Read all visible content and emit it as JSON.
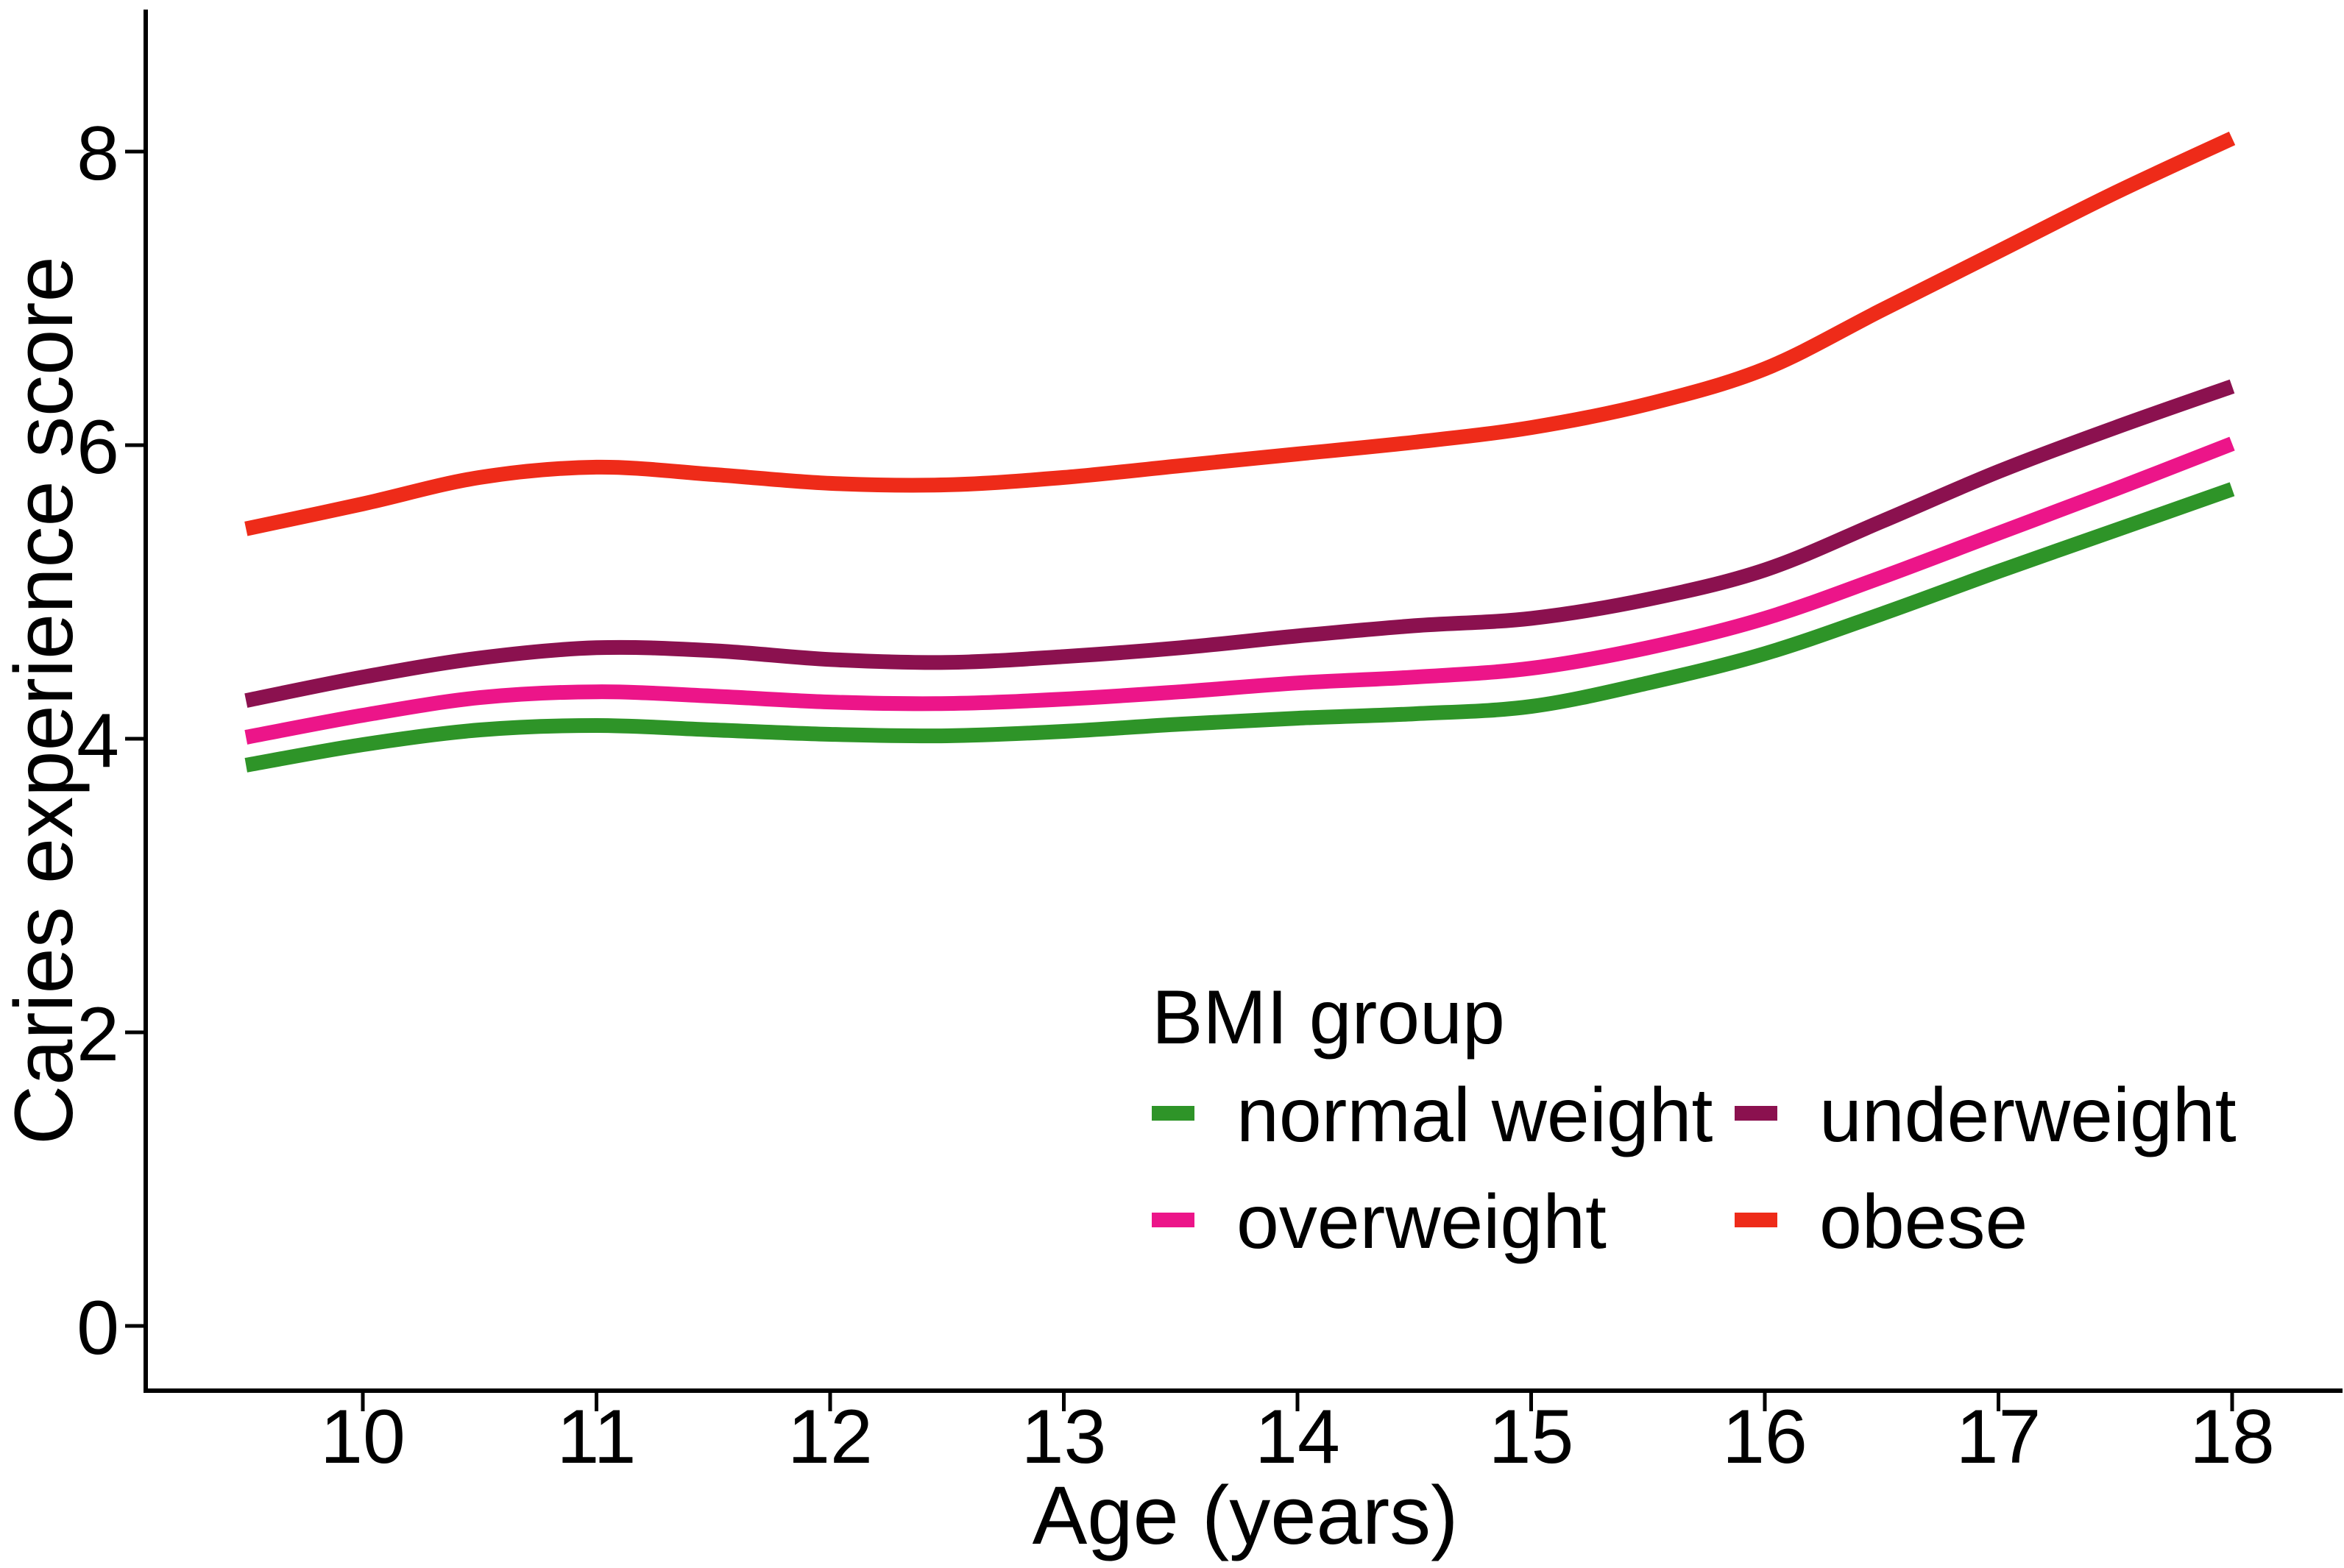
{
  "axes": {
    "x": {
      "label": "Age (years)",
      "ticks": [
        10,
        11,
        12,
        13,
        14,
        15,
        16,
        17,
        18
      ]
    },
    "y": {
      "label": "Caries experience score",
      "ticks": [
        0,
        2,
        4,
        6,
        8
      ]
    }
  },
  "legend": {
    "title": "BMI group",
    "entries": [
      {
        "label": "normal weight",
        "color": "#2e9428"
      },
      {
        "label": "underweight",
        "color": "#8b114f"
      },
      {
        "label": "overweight",
        "color": "#ec1589"
      },
      {
        "label": "obese",
        "color": "#ee2b19"
      }
    ]
  },
  "colors": {
    "axis": "#000000",
    "text": "#000000",
    "background": "#ffffff"
  },
  "chart_data": {
    "type": "line",
    "title": "",
    "xlabel": "Age (years)",
    "ylabel": "Caries experience score",
    "x": [
      9.5,
      10,
      10.5,
      11,
      11.5,
      12,
      12.5,
      13,
      13.5,
      14,
      14.5,
      15,
      15.5,
      16,
      16.5,
      17,
      17.5,
      18
    ],
    "series": [
      {
        "name": "normal weight",
        "color": "#2e9428",
        "values": [
          3.82,
          3.96,
          4.06,
          4.09,
          4.06,
          4.03,
          4.02,
          4.05,
          4.1,
          4.14,
          4.17,
          4.22,
          4.38,
          4.58,
          4.85,
          5.14,
          5.42,
          5.7
        ]
      },
      {
        "name": "overweight",
        "color": "#ec1589",
        "values": [
          4.01,
          4.16,
          4.28,
          4.32,
          4.29,
          4.25,
          4.24,
          4.27,
          4.32,
          4.38,
          4.42,
          4.48,
          4.62,
          4.82,
          5.1,
          5.4,
          5.7,
          6.01
        ]
      },
      {
        "name": "underweight",
        "color": "#8b114f",
        "values": [
          4.26,
          4.42,
          4.55,
          4.62,
          4.6,
          4.54,
          4.52,
          4.56,
          4.62,
          4.7,
          4.77,
          4.82,
          4.95,
          5.15,
          5.48,
          5.82,
          6.12,
          6.4
        ]
      },
      {
        "name": "obese",
        "color": "#ee2b19",
        "values": [
          5.43,
          5.6,
          5.78,
          5.85,
          5.8,
          5.74,
          5.73,
          5.78,
          5.86,
          5.94,
          6.02,
          6.12,
          6.28,
          6.52,
          6.92,
          7.32,
          7.72,
          8.09
        ]
      }
    ],
    "xlim": [
      9.07,
      18.48
    ],
    "ylim": [
      -0.44,
      8.97
    ],
    "grid": false,
    "legend_position": "inside-bottom-right",
    "legend_title": "BMI group"
  }
}
